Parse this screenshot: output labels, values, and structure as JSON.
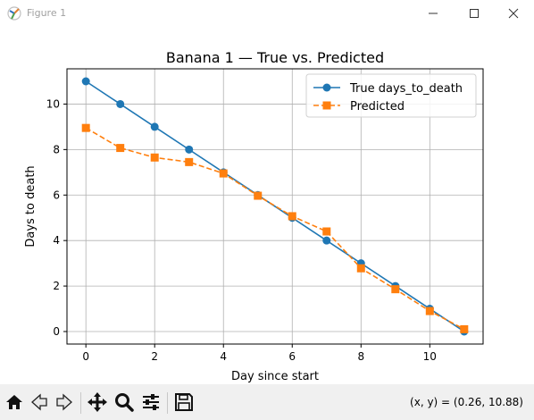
{
  "window": {
    "title": "Figure 1",
    "icon": "matplotlib-icon",
    "controls": [
      "minimize-icon",
      "maximize-icon",
      "close-icon"
    ]
  },
  "chart_data": {
    "type": "line",
    "title": "Banana 1 — True vs. Predicted",
    "xlabel": "Day since start",
    "ylabel": "Days to death",
    "xlim": [
      -0.55,
      11.55
    ],
    "ylim": [
      -0.55,
      11.55
    ],
    "xticks": [
      0,
      2,
      4,
      6,
      8,
      10
    ],
    "yticks": [
      0,
      2,
      4,
      6,
      8,
      10
    ],
    "grid": true,
    "legend_position": "top-right",
    "x": [
      0,
      1,
      2,
      3,
      4,
      5,
      6,
      7,
      8,
      9,
      10,
      11
    ],
    "series": [
      {
        "name": "True days_to_death",
        "values": [
          11,
          10,
          9,
          8,
          7,
          6,
          5,
          4,
          3,
          2,
          1,
          0
        ],
        "color": "#1f77b4",
        "marker": "circle",
        "linestyle": "solid"
      },
      {
        "name": "Predicted",
        "values": [
          8.95,
          8.07,
          7.65,
          7.45,
          6.95,
          5.97,
          5.07,
          4.4,
          2.78,
          1.86,
          0.9,
          0.1
        ],
        "color": "#ff7f0e",
        "marker": "square",
        "linestyle": "dashed"
      }
    ]
  },
  "toolbar": {
    "tools": [
      "home-icon",
      "back-icon",
      "forward-icon",
      "pan-icon",
      "zoom-icon",
      "configure-subplots-icon",
      "save-icon"
    ],
    "coords": "(x, y) = (0.26, 10.88)"
  }
}
